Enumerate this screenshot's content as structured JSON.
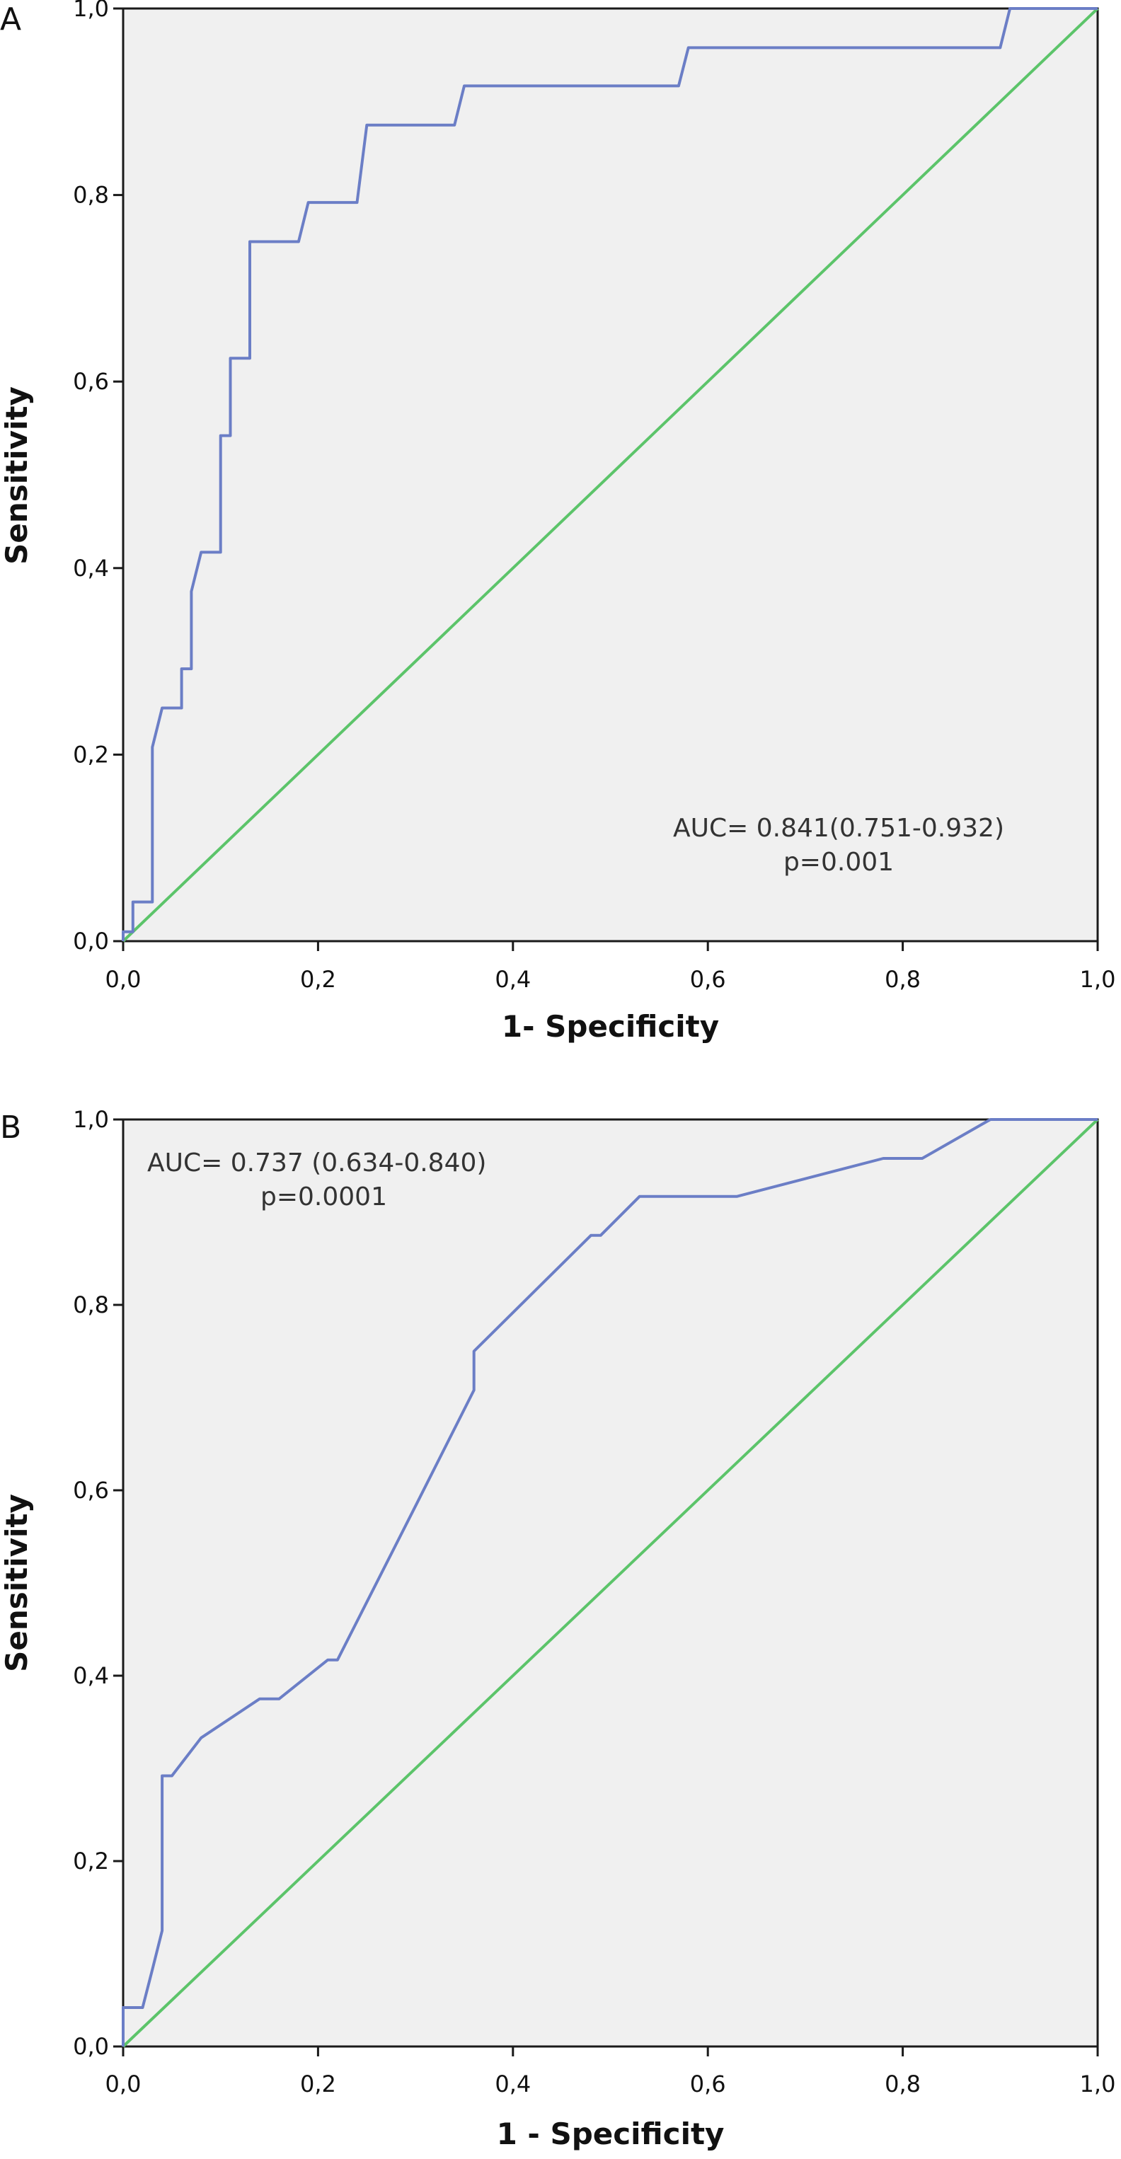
{
  "chart_data": [
    {
      "panel_label": "A",
      "type": "line",
      "xlabel": "1- Specificity",
      "ylabel": "Sensitivity",
      "xlim": [
        0,
        1
      ],
      "ylim": [
        0,
        1
      ],
      "xticks": [
        "0,0",
        "0,2",
        "0,4",
        "0,6",
        "0,8",
        "1,0"
      ],
      "yticks": [
        "0,0",
        "0,2",
        "0,4",
        "0,6",
        "0,8",
        "1,0"
      ],
      "grid": false,
      "annotation": [
        "AUC= 0.841(0.751-0.932)",
        "p=0.001"
      ],
      "series": [
        {
          "color": "#6b7ec6",
          "x": [
            0.0,
            0.0,
            0.01,
            0.01,
            0.03,
            0.03,
            0.04,
            0.04,
            0.06,
            0.06,
            0.07,
            0.07,
            0.08,
            0.08,
            0.1,
            0.1,
            0.11,
            0.11,
            0.13,
            0.13,
            0.18,
            0.19,
            0.24,
            0.25,
            0.34,
            0.35,
            0.57,
            0.58,
            0.9,
            0.91,
            1.0
          ],
          "y": [
            0.0,
            0.01,
            0.01,
            0.042,
            0.042,
            0.208,
            0.25,
            0.25,
            0.25,
            0.292,
            0.292,
            0.375,
            0.417,
            0.417,
            0.417,
            0.542,
            0.542,
            0.625,
            0.625,
            0.75,
            0.75,
            0.792,
            0.792,
            0.875,
            0.875,
            0.917,
            0.917,
            0.958,
            0.958,
            1.0,
            1.0
          ]
        },
        {
          "color": "#5cc46a",
          "x": [
            0,
            1
          ],
          "y": [
            0,
            1
          ]
        }
      ]
    },
    {
      "panel_label": "B",
      "type": "line",
      "xlabel": "1 - Specificity",
      "ylabel": "Sensitivity",
      "xlim": [
        0,
        1
      ],
      "ylim": [
        0,
        1
      ],
      "xticks": [
        "0,0",
        "0,2",
        "0,4",
        "0,6",
        "0,8",
        "1,0"
      ],
      "yticks": [
        "0,0",
        "0,2",
        "0,4",
        "0,6",
        "0,8",
        "1,0"
      ],
      "grid": false,
      "annotation": [
        "AUC= 0.737 (0.634-0.840)",
        "p=0.0001"
      ],
      "series": [
        {
          "color": "#6b7ec6",
          "x": [
            0.0,
            0.0,
            0.01,
            0.02,
            0.03,
            0.04,
            0.04,
            0.05,
            0.08,
            0.14,
            0.16,
            0.21,
            0.22,
            0.3,
            0.36,
            0.36,
            0.48,
            0.49,
            0.53,
            0.63,
            0.78,
            0.82,
            0.89,
            1.0
          ],
          "y": [
            0.0,
            0.042,
            0.042,
            0.042,
            0.083,
            0.125,
            0.292,
            0.292,
            0.333,
            0.375,
            0.375,
            0.417,
            0.417,
            0.583,
            0.708,
            0.75,
            0.875,
            0.875,
            0.917,
            0.917,
            0.958,
            0.958,
            1.0,
            1.0
          ]
        },
        {
          "color": "#5cc46a",
          "x": [
            0,
            1
          ],
          "y": [
            0,
            1
          ]
        }
      ]
    }
  ]
}
